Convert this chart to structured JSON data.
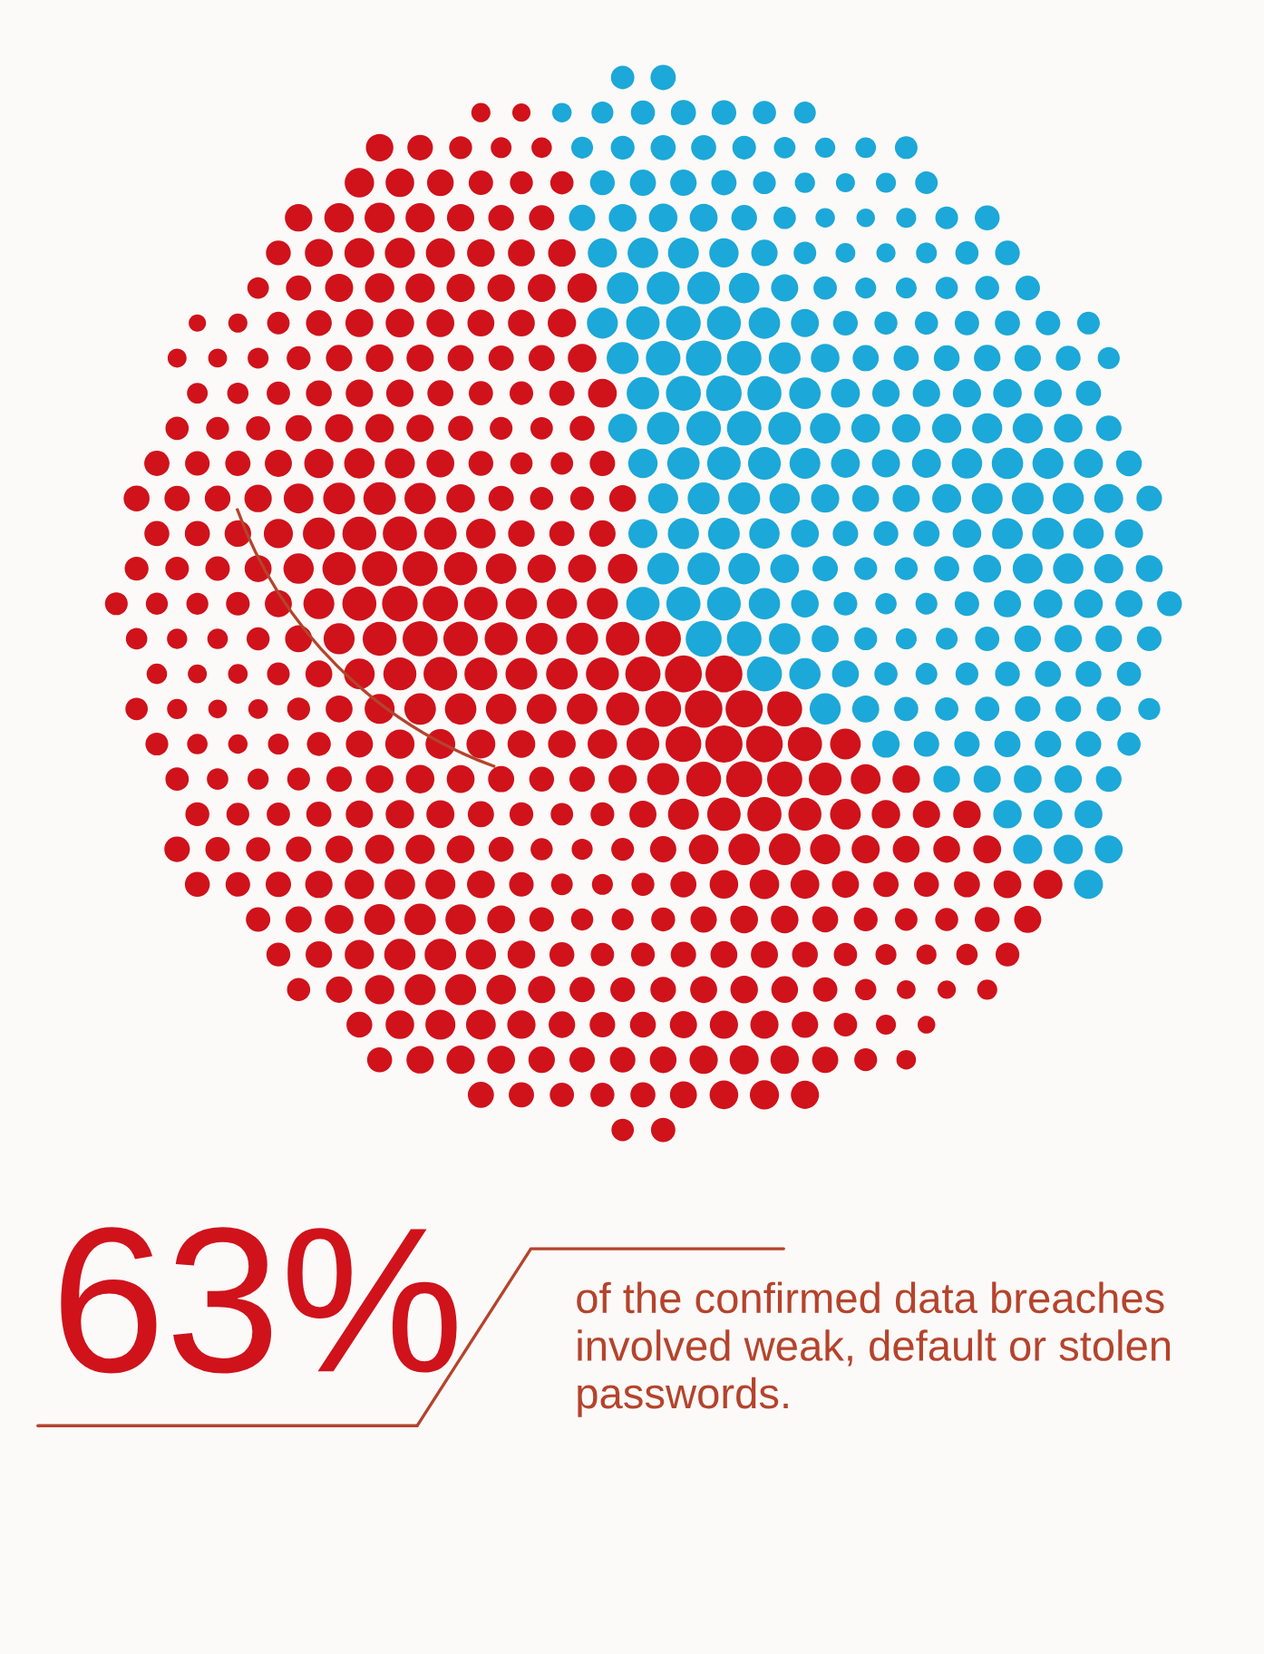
{
  "chart_data": {
    "type": "other",
    "series": [
      {
        "color": "#d0121b",
        "values": [
          63
        ],
        "value_labels": [
          "63%"
        ]
      }
    ],
    "annotations": [
      "of the confirmed data breaches involved weak, default or stolen passwords."
    ]
  }
}
